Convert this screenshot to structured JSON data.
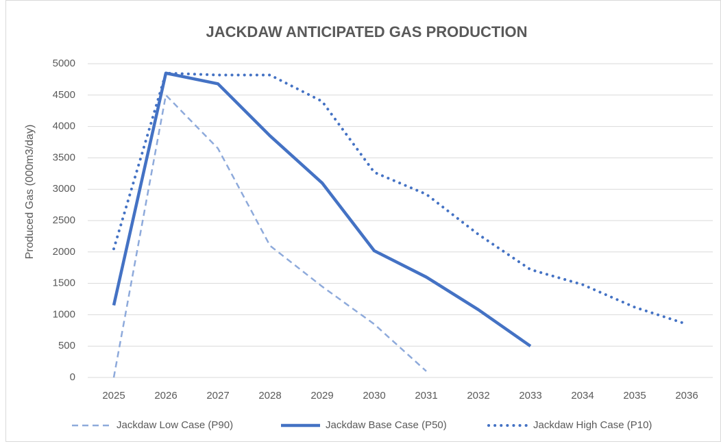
{
  "chart_data": {
    "type": "line",
    "title": "JACKDAW ANTICIPATED GAS PRODUCTION",
    "y_label": "Produced Gas (000m3/day)",
    "categories": [
      "2025",
      "2026",
      "2027",
      "2028",
      "2029",
      "2030",
      "2031",
      "2032",
      "2033",
      "2034",
      "2035",
      "2036"
    ],
    "series": [
      {
        "name": "Jackdaw Low Case (P90)",
        "color": "#8eaadb",
        "style": "dashed",
        "values": [
          0,
          4500,
          3650,
          2100,
          1450,
          850,
          100,
          null,
          null,
          null,
          null,
          null
        ]
      },
      {
        "name": "Jackdaw Base Case (P50)",
        "color": "#4472c4",
        "style": "solid",
        "values": [
          1150,
          4850,
          4680,
          3850,
          3100,
          2020,
          1600,
          1080,
          500,
          null,
          null,
          null
        ]
      },
      {
        "name": "Jackdaw High Case (P10)",
        "color": "#4472c4",
        "style": "dotted",
        "values": [
          2050,
          4850,
          4820,
          4820,
          4400,
          3270,
          2920,
          2280,
          1720,
          1480,
          1120,
          850
        ]
      }
    ],
    "ylim": [
      0,
      5000
    ],
    "yticks": [
      0,
      500,
      1000,
      1500,
      2000,
      2500,
      3000,
      3500,
      4000,
      4500,
      5000
    ],
    "grid": true,
    "legend": "bottom"
  }
}
